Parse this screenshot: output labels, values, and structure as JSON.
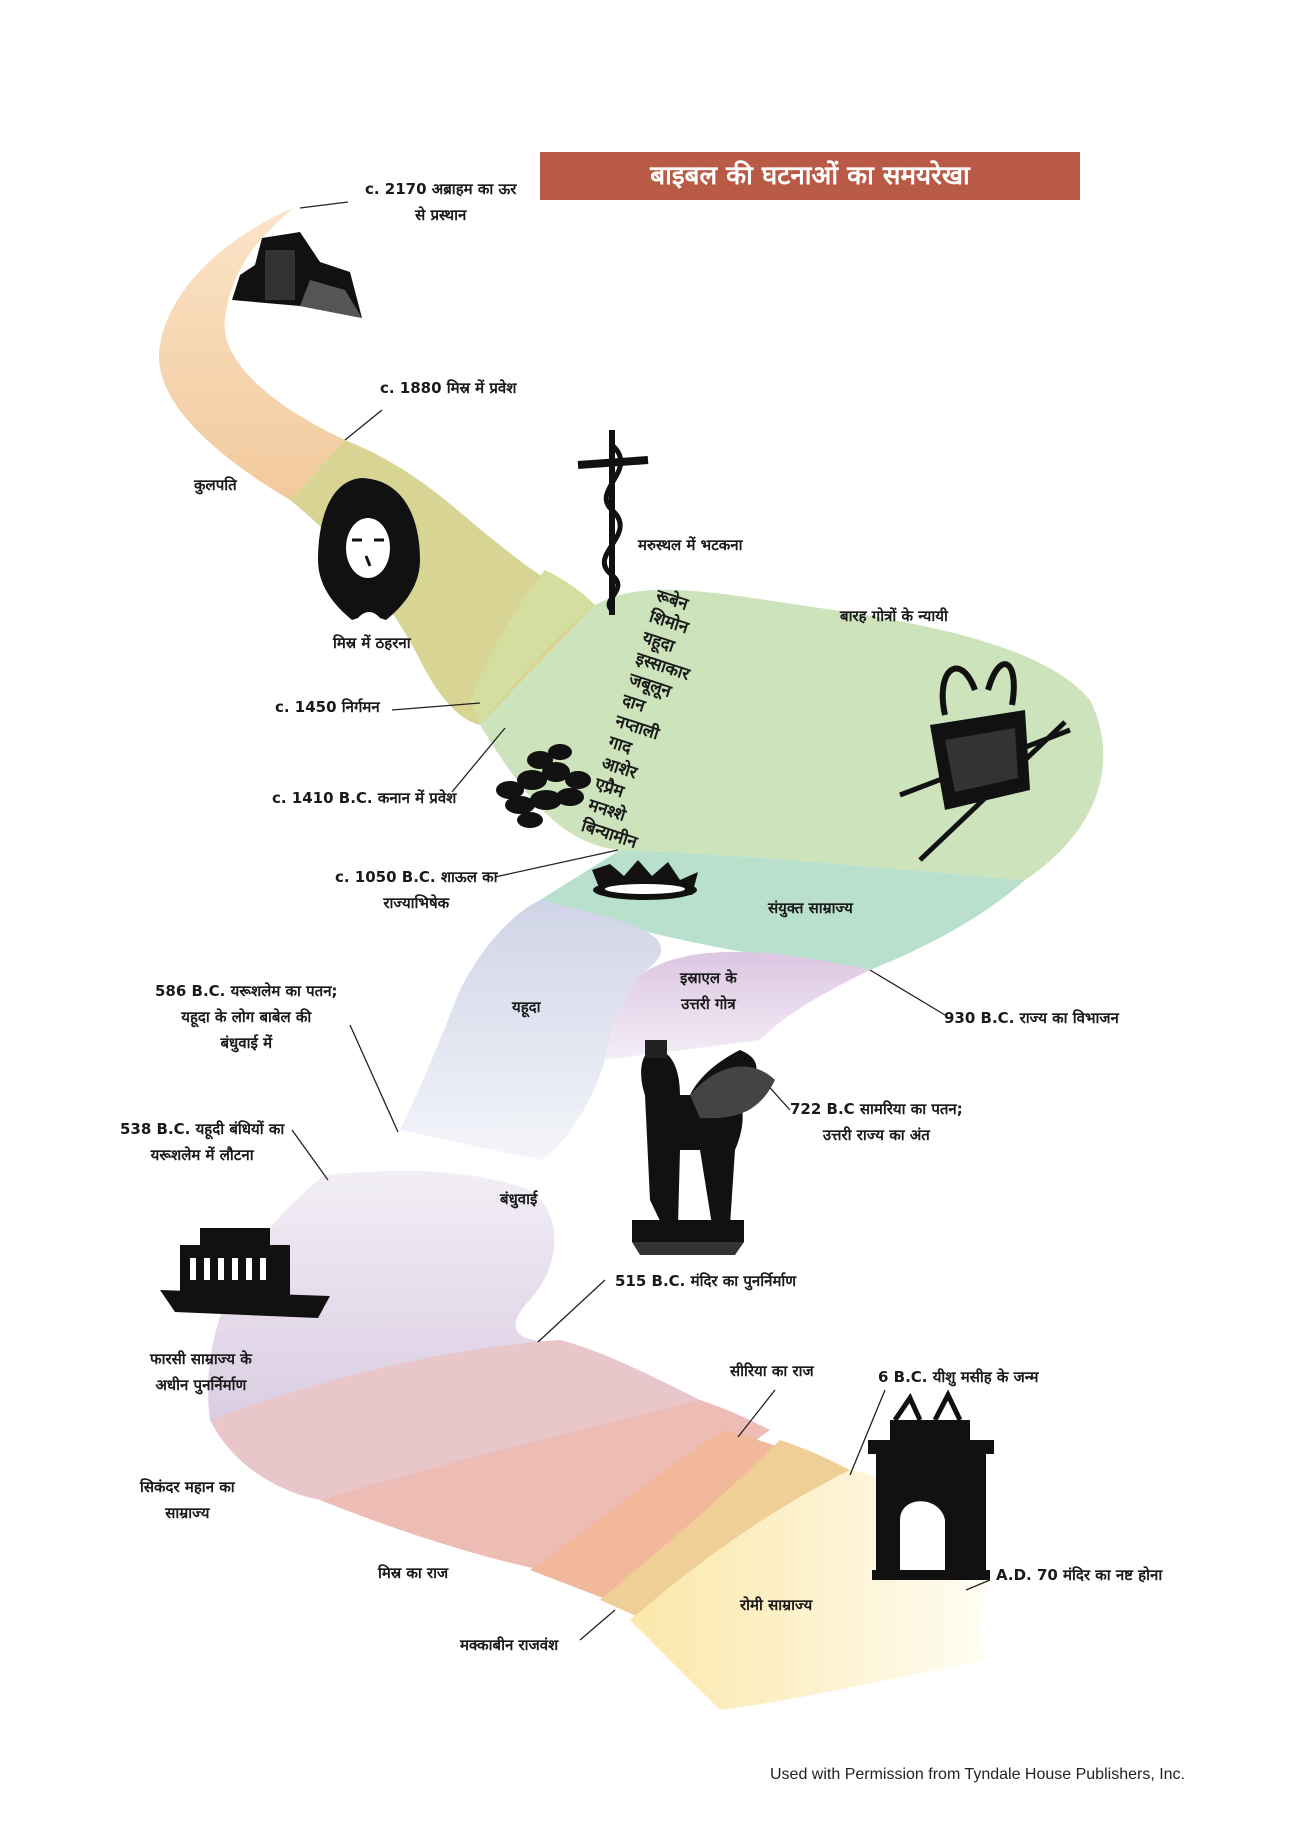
{
  "title": "बाइबल की घटनाओं का समयरेखा",
  "credit": "Used with Permission from Tyndale House Publishers, Inc.",
  "colors": {
    "title_bg": "#b85a45",
    "patriarchs": "#f4cfa6",
    "egypt": "#d9d38a",
    "judges": "#cbe3b9",
    "united": "#b6e0cc",
    "judah": "#d8dce8",
    "israel": "#e4d3e6",
    "persia": "#ddd0e3",
    "greece": "#e8c8cc",
    "ptolemy": "#ecbfb5",
    "seleucid": "#f0b79b",
    "rome": "#fbe8b0"
  },
  "events": {
    "e2170": [
      "c. 2170 अब्राहम का ऊर",
      "से प्रस्थान"
    ],
    "e1880": "c. 1880 मिस्र में प्रवेश",
    "e1450": "c. 1450 निर्गमन",
    "e1410": "c. 1410 B.C. कनान में प्रवेश",
    "e1050": [
      "c. 1050 B.C. शाऊल का",
      "राज्याभिषेक"
    ],
    "e930": "930 B.C. राज्य का  विभाजन",
    "e722": [
      "722 B.C सामरिया का पतन;",
      "उत्तरी राज्य का अंत"
    ],
    "e586": [
      "586 B.C. यरूशलेम का पतन;",
      "यहूदा के लोग बाबेल की",
      "बंधुवाई में"
    ],
    "e538": [
      "538 B.C. यहूदी बंधियों का",
      "यरूशलेम में लौटना"
    ],
    "e515": "515 B.C. मंदिर का पुनर्निर्माण",
    "e6": "6 B.C. यीशु मसीह के जन्म",
    "e70": "A.D. 70 मंदिर का नष्ट होना"
  },
  "periods": {
    "patriarchs": "कुलपति",
    "egypt_stay": "मिस्र में ठहरना",
    "wandering": "मरुस्थल में भटकना",
    "judges": "बारह गोत्रों  के न्यायी",
    "united": "संयुक्त साम्राज्य",
    "judah": "यहूदा",
    "israel": [
      "इस्राएल के",
      "उत्तरी गोत्र"
    ],
    "exile": "बंधुवाई",
    "persia": [
      "फारसी साम्राज्य के",
      "अधीन पुनर्निर्माण"
    ],
    "greece": [
      "सिकंदर महान का",
      "साम्राज्य"
    ],
    "ptolemy": "मिस्र का राज",
    "seleucid": "सीरिया का राज",
    "maccabean": "मक्काबीन राजवंश",
    "rome": "रोमी साम्राज्य"
  },
  "tribes": [
    "रूबेन",
    "शिमोन",
    "यहूदा",
    "इस्साकार",
    "जबूलून",
    "दान",
    "नप्ताली",
    "गाद",
    "आशेर",
    "एप्रैम",
    "मनश्शे",
    "बिन्यामीन"
  ],
  "icons": [
    "ziggurat-icon",
    "pharaoh-mask-icon",
    "bronze-serpent-icon",
    "manna-stones-icon",
    "ark-of-covenant-icon",
    "crown-icon",
    "winged-bull-icon",
    "persian-palace-icon",
    "roman-arch-icon"
  ]
}
